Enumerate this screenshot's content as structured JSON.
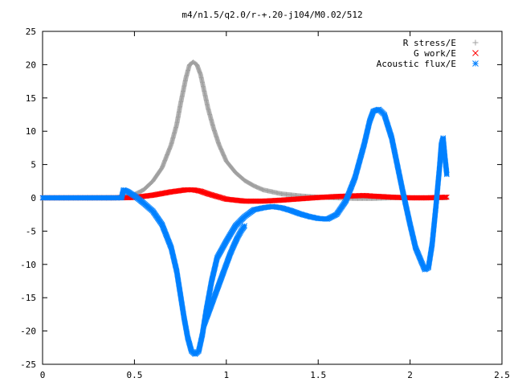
{
  "chart_data": {
    "type": "scatter",
    "title": "m4/n1.5/q2.0/r-+.20-j104/M0.02/512",
    "xlabel": "",
    "ylabel": "",
    "xlim": [
      0,
      2.5
    ],
    "ylim": [
      -25,
      25
    ],
    "x_ticks": [
      0,
      0.5,
      1,
      1.5,
      2,
      2.5
    ],
    "x_tick_labels": [
      "0",
      "0.5",
      "1",
      "1.5",
      "2",
      "2.5"
    ],
    "y_ticks": [
      -25,
      -20,
      -15,
      -10,
      -5,
      0,
      5,
      10,
      15,
      20,
      25
    ],
    "y_tick_labels": [
      "-25",
      "-20",
      "-15",
      "-10",
      "-5",
      "0",
      "5",
      "10",
      "15",
      "20",
      "25"
    ],
    "grid": false,
    "legend_position": "top-right",
    "series": [
      {
        "name": "R stress/E",
        "marker": "plus",
        "color": "#a0a0a0",
        "points": [
          [
            0.0,
            0.0
          ],
          [
            0.2,
            0.0
          ],
          [
            0.4,
            0.05
          ],
          [
            0.45,
            0.2
          ],
          [
            0.5,
            0.5
          ],
          [
            0.55,
            1.2
          ],
          [
            0.6,
            2.5
          ],
          [
            0.65,
            4.5
          ],
          [
            0.7,
            8.0
          ],
          [
            0.73,
            11.0
          ],
          [
            0.75,
            14.0
          ],
          [
            0.78,
            18.0
          ],
          [
            0.8,
            20.0
          ],
          [
            0.82,
            20.4
          ],
          [
            0.84,
            20.0
          ],
          [
            0.86,
            18.5
          ],
          [
            0.88,
            16.0
          ],
          [
            0.9,
            13.5
          ],
          [
            0.93,
            10.5
          ],
          [
            0.96,
            8.0
          ],
          [
            1.0,
            5.5
          ],
          [
            1.05,
            3.8
          ],
          [
            1.1,
            2.6
          ],
          [
            1.15,
            1.8
          ],
          [
            1.2,
            1.2
          ],
          [
            1.3,
            0.6
          ],
          [
            1.4,
            0.3
          ],
          [
            1.5,
            0.1
          ],
          [
            1.6,
            0.0
          ],
          [
            1.7,
            -0.1
          ],
          [
            1.8,
            -0.1
          ],
          [
            1.9,
            0.0
          ],
          [
            2.0,
            0.0
          ],
          [
            2.1,
            0.0
          ],
          [
            2.2,
            0.0
          ]
        ]
      },
      {
        "name": "G work/E",
        "marker": "cross",
        "color": "#ff0000",
        "points": [
          [
            0.0,
            0.0
          ],
          [
            0.4,
            0.0
          ],
          [
            0.5,
            0.05
          ],
          [
            0.6,
            0.4
          ],
          [
            0.7,
            0.9
          ],
          [
            0.78,
            1.2
          ],
          [
            0.82,
            1.2
          ],
          [
            0.86,
            1.0
          ],
          [
            0.9,
            0.6
          ],
          [
            0.95,
            0.2
          ],
          [
            1.0,
            -0.2
          ],
          [
            1.1,
            -0.5
          ],
          [
            1.2,
            -0.5
          ],
          [
            1.3,
            -0.35
          ],
          [
            1.4,
            -0.15
          ],
          [
            1.5,
            0.05
          ],
          [
            1.6,
            0.2
          ],
          [
            1.7,
            0.3
          ],
          [
            1.75,
            0.35
          ],
          [
            1.8,
            0.25
          ],
          [
            1.9,
            0.1
          ],
          [
            2.0,
            0.0
          ],
          [
            2.1,
            0.0
          ],
          [
            2.2,
            0.1
          ]
        ]
      },
      {
        "name": "Acoustic flux/E",
        "marker": "asterisk",
        "color": "#0080ff",
        "points": [
          [
            0.0,
            0.0
          ],
          [
            0.2,
            0.0
          ],
          [
            0.4,
            0.0
          ],
          [
            0.43,
            0.0
          ],
          [
            0.44,
            1.2
          ],
          [
            0.46,
            1.0
          ],
          [
            0.5,
            0.3
          ],
          [
            0.55,
            -0.8
          ],
          [
            0.6,
            -2.0
          ],
          [
            0.65,
            -4.0
          ],
          [
            0.7,
            -7.5
          ],
          [
            0.73,
            -11.0
          ],
          [
            0.75,
            -14.5
          ],
          [
            0.77,
            -18.0
          ],
          [
            0.79,
            -21.0
          ],
          [
            0.81,
            -23.0
          ],
          [
            0.83,
            -23.5
          ],
          [
            0.85,
            -23.0
          ],
          [
            0.87,
            -20.5
          ],
          [
            0.89,
            -17.0
          ],
          [
            0.92,
            -12.5
          ],
          [
            0.95,
            -9.0
          ],
          [
            1.0,
            -6.5
          ],
          [
            1.05,
            -4.2
          ],
          [
            1.1,
            -2.8
          ],
          [
            1.15,
            -1.8
          ],
          [
            1.2,
            -1.5
          ],
          [
            1.25,
            -1.3
          ],
          [
            1.3,
            -1.5
          ],
          [
            1.35,
            -1.9
          ],
          [
            1.4,
            -2.4
          ],
          [
            1.45,
            -2.8
          ],
          [
            1.5,
            -3.1
          ],
          [
            1.55,
            -3.2
          ],
          [
            1.6,
            -2.5
          ],
          [
            1.65,
            -0.5
          ],
          [
            1.7,
            3.0
          ],
          [
            1.75,
            8.0
          ],
          [
            1.78,
            11.5
          ],
          [
            1.8,
            13.0
          ],
          [
            1.83,
            13.3
          ],
          [
            1.86,
            12.5
          ],
          [
            1.9,
            9.0
          ],
          [
            1.93,
            5.0
          ],
          [
            1.96,
            1.0
          ],
          [
            2.0,
            -4.0
          ],
          [
            2.03,
            -7.5
          ],
          [
            2.06,
            -9.5
          ],
          [
            2.08,
            -10.8
          ],
          [
            2.1,
            -10.5
          ],
          [
            2.12,
            -7.0
          ],
          [
            2.14,
            -1.5
          ],
          [
            2.16,
            4.5
          ],
          [
            2.17,
            8.0
          ],
          [
            2.18,
            9.0
          ],
          [
            2.19,
            6.0
          ],
          [
            2.2,
            3.5
          ]
        ]
      },
      {
        "name": "",
        "marker": "asterisk",
        "color": "#0080ff",
        "points": [
          [
            1.1,
            -4.2
          ],
          [
            1.08,
            -5.0
          ],
          [
            1.06,
            -6.0
          ],
          [
            1.04,
            -7.2
          ],
          [
            1.02,
            -8.5
          ],
          [
            1.0,
            -10.0
          ],
          [
            0.98,
            -11.5
          ],
          [
            0.96,
            -13.0
          ],
          [
            0.94,
            -14.5
          ],
          [
            0.92,
            -16.0
          ],
          [
            0.9,
            -17.5
          ],
          [
            0.88,
            -19.0
          ]
        ]
      }
    ]
  }
}
